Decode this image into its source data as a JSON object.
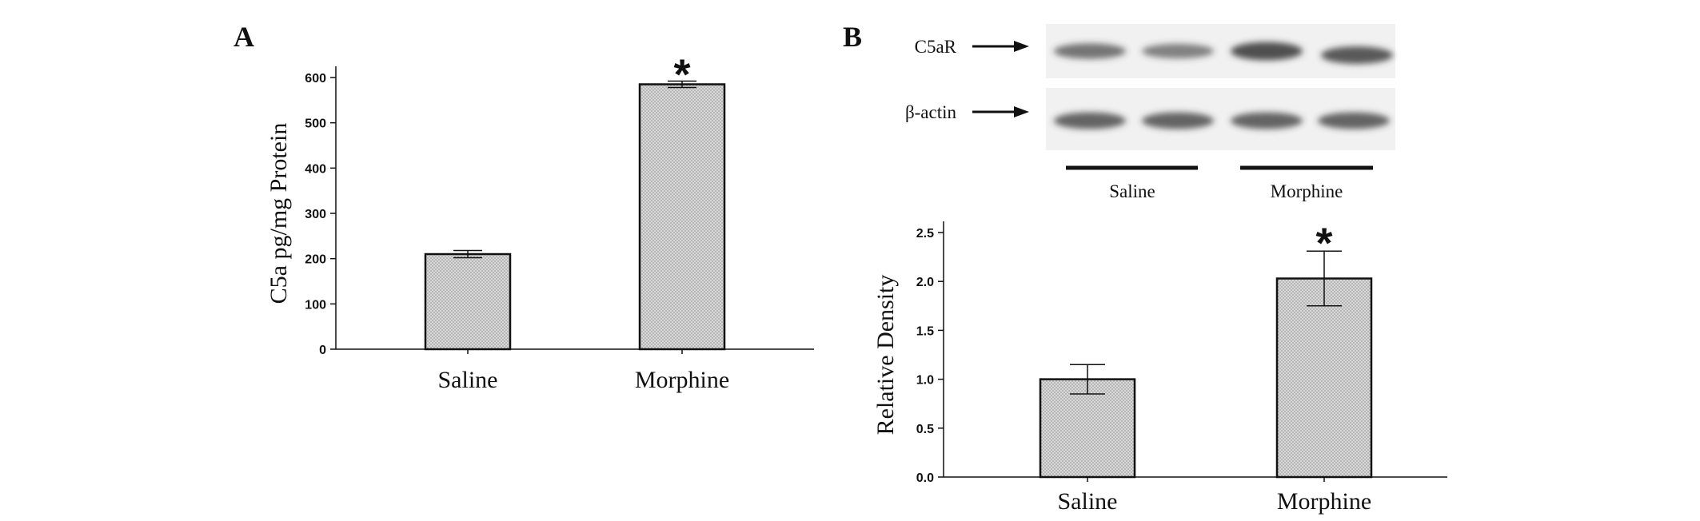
{
  "panels": {
    "a": {
      "label": "A"
    },
    "b": {
      "label": "B"
    }
  },
  "colors": {
    "bar_fill": "#d9d9d9",
    "bar_dot": "#8c8c8c",
    "ink": "#111111",
    "blot_bg": "#f1f1f1",
    "band": "#3a3a3a"
  },
  "blot": {
    "rows": [
      {
        "label": "C5aR",
        "bands": [
          0.55,
          0.45,
          0.9,
          0.8
        ]
      },
      {
        "label": "β-actin",
        "bands": [
          0.7,
          0.7,
          0.7,
          0.7
        ]
      }
    ],
    "groups": [
      "Saline",
      "Morphine"
    ],
    "arrow_icon": "arrow-right-icon"
  },
  "chart_data": [
    {
      "type": "bar",
      "panel": "A",
      "categories": [
        "Saline",
        "Morphine"
      ],
      "values": [
        210,
        585
      ],
      "errors": [
        8,
        7
      ],
      "significance": [
        "",
        "*"
      ],
      "xlabel": "",
      "ylabel": "C5a pg/mg Protein",
      "ylim": [
        0,
        600
      ],
      "yticks": [
        0,
        100,
        200,
        300,
        400,
        500,
        600
      ],
      "grid": false
    },
    {
      "type": "bar",
      "panel": "B",
      "categories": [
        "Saline",
        "Morphine"
      ],
      "values": [
        1.0,
        2.03
      ],
      "errors": [
        0.15,
        0.28
      ],
      "significance": [
        "",
        "*"
      ],
      "xlabel": "",
      "ylabel": "Relative Density",
      "ylim": [
        0,
        2.5
      ],
      "yticks": [
        "0.0",
        "0.5",
        "1.0",
        "1.5",
        "2.0",
        "2.5"
      ],
      "grid": false
    }
  ]
}
